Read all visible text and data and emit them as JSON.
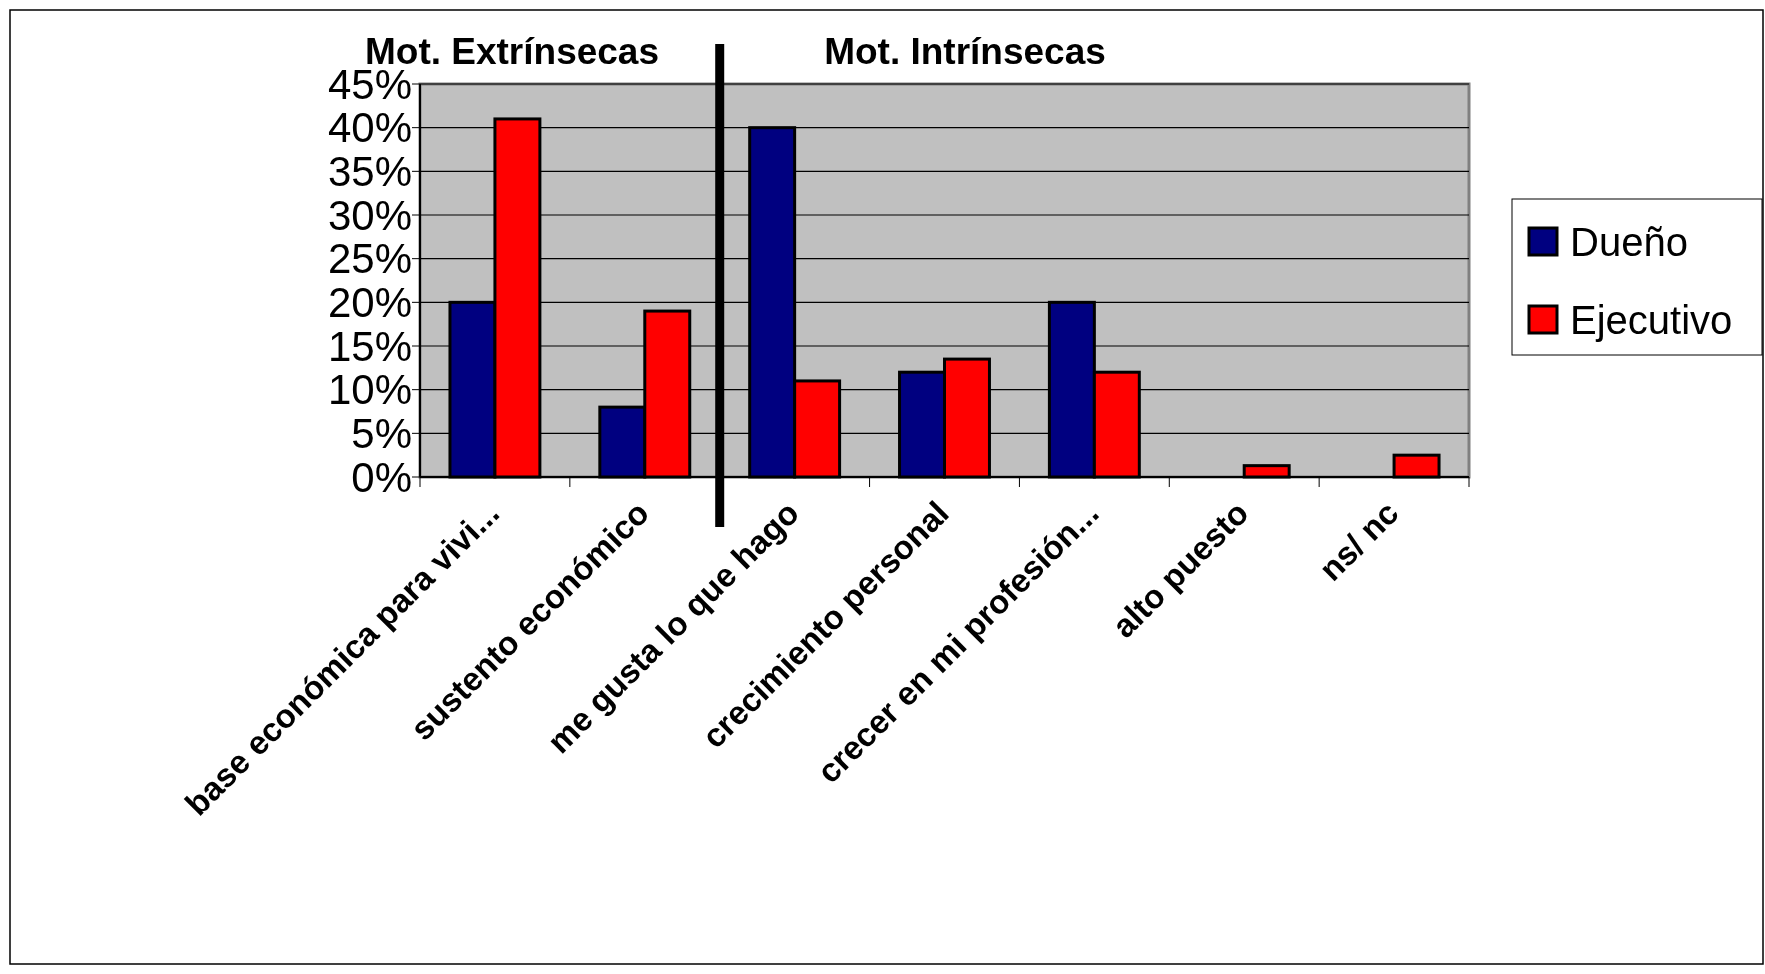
{
  "chart_data": {
    "type": "bar",
    "categories": [
      "base económica para vivi...",
      "sustento económico",
      "me gusta lo que hago",
      "crecimiento personal",
      "crecer en mi profesión...",
      "alto puesto",
      "ns/ nc"
    ],
    "series": [
      {
        "name": "Dueño",
        "color": "#000080",
        "values": [
          20,
          8,
          40,
          12,
          20,
          0,
          0
        ]
      },
      {
        "name": "Ejecutivo",
        "color": "#ff0000",
        "values": [
          41,
          19,
          11,
          13.5,
          12,
          1.3,
          2.5
        ]
      }
    ],
    "ylim": [
      0,
      45
    ],
    "yticks": [
      {
        "value": 0,
        "label": "0%"
      },
      {
        "value": 5,
        "label": "5%"
      },
      {
        "value": 10,
        "label": "10%"
      },
      {
        "value": 15,
        "label": "15%"
      },
      {
        "value": 20,
        "label": "20%"
      },
      {
        "value": 25,
        "label": "25%"
      },
      {
        "value": 30,
        "label": "30%"
      },
      {
        "value": 35,
        "label": "35%"
      },
      {
        "value": 40,
        "label": "40%"
      },
      {
        "value": 45,
        "label": "45%"
      }
    ],
    "grid": "y",
    "legend": "right",
    "ref_lines": [
      {
        "axis": "x",
        "value": "me gusta lo que hago",
        "color": "#000000"
      }
    ],
    "annotations": [
      "Mot. Extrínsecas",
      "Mot. Intrínsecas"
    ]
  }
}
